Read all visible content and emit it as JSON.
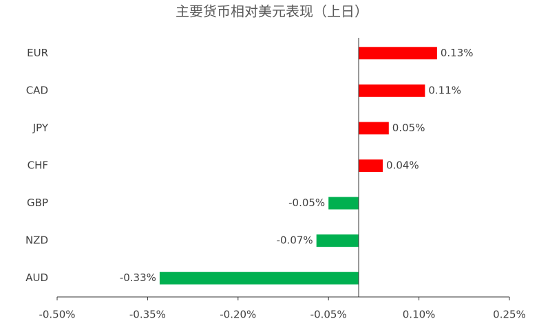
{
  "chart_data": {
    "type": "hbar",
    "title": "主要货币相对美元表现（上日）",
    "categories": [
      "EUR",
      "CAD",
      "JPY",
      "CHF",
      "GBP",
      "NZD",
      "AUD"
    ],
    "values": [
      0.13,
      0.11,
      0.05,
      0.04,
      -0.05,
      -0.07,
      -0.33
    ],
    "value_labels": [
      "0.13%",
      "0.11%",
      "0.05%",
      "0.04%",
      "-0.05%",
      "-0.07%",
      "-0.33%"
    ],
    "colors": [
      "#ff0000",
      "#ff0000",
      "#ff0000",
      "#ff0000",
      "#00b050",
      "#00b050",
      "#00b050"
    ],
    "xlim": [
      -0.5,
      0.25
    ],
    "xticks": [
      {
        "value": -0.5,
        "label": "-0.50%"
      },
      {
        "value": -0.35,
        "label": "-0.35%"
      },
      {
        "value": -0.2,
        "label": "-0.20%"
      },
      {
        "value": -0.05,
        "label": "-0.05%"
      },
      {
        "value": 0.1,
        "label": "0.10%"
      },
      {
        "value": 0.25,
        "label": "0.25%"
      }
    ],
    "grid": false
  }
}
